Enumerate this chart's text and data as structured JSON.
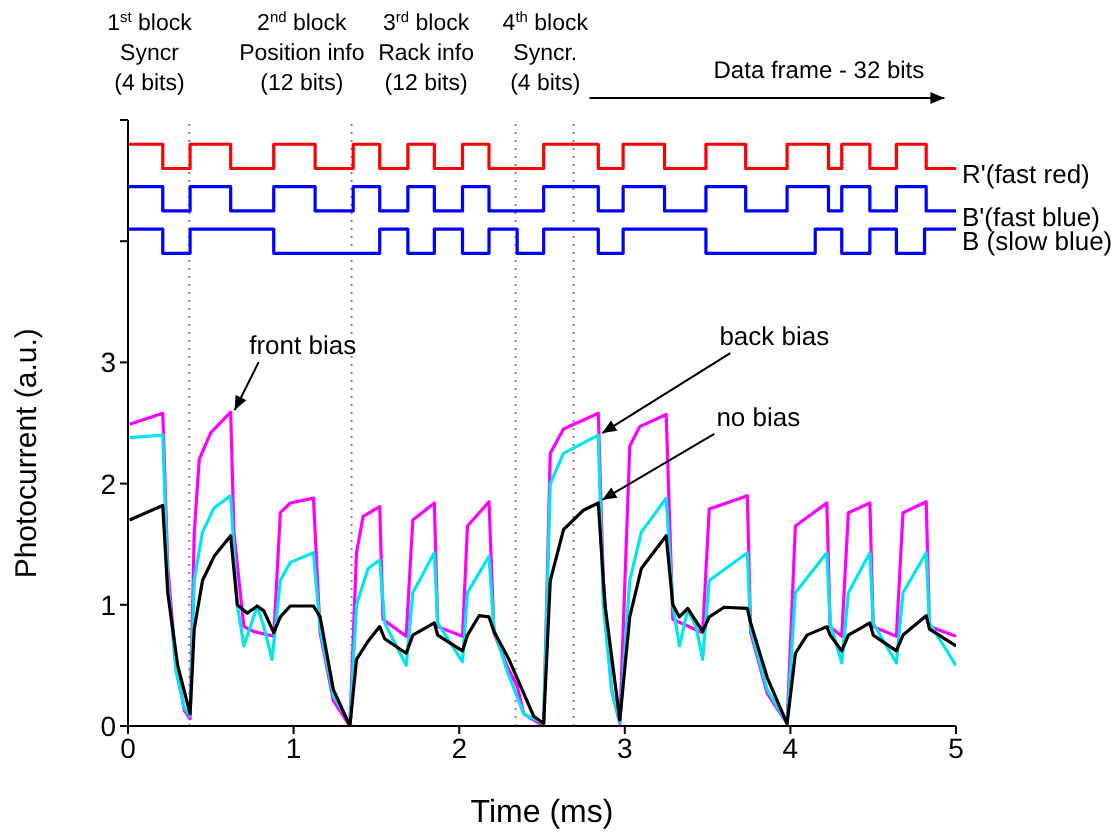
{
  "chart_data": {
    "type": "line",
    "xlabel": "Time (ms)",
    "ylabel": "Photocurrent (a.u.)",
    "xlim": [
      0,
      5
    ],
    "xticks": [
      0,
      1,
      2,
      3,
      4,
      5
    ],
    "ylim": [
      0,
      5
    ],
    "yticks": [
      0,
      1,
      2,
      3,
      {
        "value": 4,
        "label": null
      },
      {
        "value": 5,
        "label": null
      }
    ],
    "series": [
      {
        "name": "R'(fast red)",
        "type": "step",
        "color": "#ff0000",
        "x": [
          0,
          0.21,
          0.375,
          0.62,
          0.88,
          1.13,
          1.36,
          1.52,
          1.69,
          1.85,
          2.02,
          2.18,
          2.51,
          2.84,
          2.99,
          3.24,
          3.49,
          3.73,
          3.98,
          4.23,
          4.31,
          4.48,
          4.64,
          4.82,
          5
        ],
        "values": [
          4.8,
          4.6,
          4.8,
          4.6,
          4.8,
          4.6,
          4.8,
          4.6,
          4.8,
          4.6,
          4.8,
          4.6,
          4.8,
          4.6,
          4.8,
          4.6,
          4.8,
          4.6,
          4.8,
          4.6,
          4.8,
          4.6,
          4.8,
          4.6,
          4.6
        ]
      },
      {
        "name": "B'(fast blue)",
        "type": "step",
        "color": "#0000ff",
        "x": [
          0,
          0.21,
          0.375,
          0.62,
          0.88,
          1.13,
          1.36,
          1.52,
          1.69,
          1.85,
          2.02,
          2.18,
          2.51,
          2.84,
          2.99,
          3.24,
          3.49,
          3.73,
          3.98,
          4.23,
          4.31,
          4.48,
          4.64,
          4.82,
          5
        ],
        "values": [
          4.45,
          4.25,
          4.45,
          4.25,
          4.45,
          4.25,
          4.45,
          4.25,
          4.45,
          4.25,
          4.45,
          4.25,
          4.45,
          4.25,
          4.45,
          4.25,
          4.45,
          4.25,
          4.45,
          4.25,
          4.45,
          4.25,
          4.45,
          4.25,
          4.25
        ]
      },
      {
        "name": "B (slow blue)",
        "type": "step",
        "color": "#0000ff",
        "x": [
          0,
          0.21,
          0.375,
          0.88,
          1.52,
          1.69,
          1.85,
          2.02,
          2.18,
          2.35,
          2.51,
          2.84,
          2.99,
          3.49,
          4.15,
          4.31,
          4.48,
          4.64,
          4.81,
          5
        ],
        "values": [
          4.1,
          3.9,
          4.1,
          3.9,
          4.1,
          3.9,
          4.1,
          3.9,
          4.1,
          3.9,
          4.1,
          3.9,
          4.1,
          3.9,
          4.1,
          3.9,
          4.1,
          3.9,
          4.1,
          4.1
        ]
      },
      {
        "color": "#ff00ff",
        "x": [
          0.01,
          0.21,
          0.24,
          0.29,
          0.34,
          0.375,
          0.4,
          0.43,
          0.5,
          0.62,
          0.64,
          0.7,
          0.76,
          0.88,
          0.92,
          0.98,
          1.12,
          1.16,
          1.24,
          1.34,
          1.38,
          1.42,
          1.52,
          1.54,
          1.68,
          1.72,
          1.85,
          1.87,
          2.02,
          2.05,
          2.18,
          2.21,
          2.29,
          2.35,
          2.39,
          2.51,
          2.55,
          2.63,
          2.84,
          2.87,
          2.92,
          2.97,
          3.03,
          3.09,
          3.25,
          3.29,
          3.47,
          3.51,
          3.74,
          3.76,
          3.86,
          3.98,
          4.03,
          4.22,
          4.24,
          4.31,
          4.35,
          4.48,
          4.5,
          4.64,
          4.68,
          4.82,
          4.84,
          5
        ],
        "values": [
          2.49,
          2.58,
          1.32,
          0.5,
          0.13,
          0.06,
          1.59,
          2.2,
          2.42,
          2.59,
          1.59,
          0.82,
          0.78,
          0.74,
          1.76,
          1.84,
          1.88,
          0.77,
          0.21,
          0,
          1.43,
          1.73,
          1.81,
          0.88,
          0.74,
          1.7,
          1.84,
          0.82,
          0.74,
          1.65,
          1.85,
          0.77,
          0.49,
          0.33,
          0.1,
          0,
          2.25,
          2.45,
          2.58,
          1.2,
          0.3,
          0.02,
          2.31,
          2.47,
          2.57,
          0.88,
          0.77,
          1.79,
          1.9,
          0.77,
          0.27,
          0.02,
          1.65,
          1.84,
          0.82,
          0.74,
          1.76,
          1.84,
          0.82,
          0.74,
          1.76,
          1.85,
          0.82,
          0.74
        ]
      },
      {
        "color": "#00e5ee",
        "x": [
          0.01,
          0.21,
          0.24,
          0.29,
          0.34,
          0.375,
          0.4,
          0.45,
          0.52,
          0.62,
          0.66,
          0.7,
          0.78,
          0.82,
          0.87,
          0.92,
          0.98,
          1.12,
          1.16,
          1.24,
          1.34,
          1.38,
          1.45,
          1.52,
          1.55,
          1.68,
          1.72,
          1.85,
          1.87,
          2.02,
          2.05,
          2.18,
          2.21,
          2.29,
          2.39,
          2.51,
          2.55,
          2.63,
          2.84,
          2.87,
          2.92,
          2.97,
          3.03,
          3.1,
          3.25,
          3.29,
          3.33,
          3.38,
          3.43,
          3.47,
          3.51,
          3.74,
          3.76,
          3.86,
          3.98,
          4.03,
          4.22,
          4.24,
          4.31,
          4.35,
          4.48,
          4.5,
          4.64,
          4.68,
          4.82,
          4.84,
          5
        ],
        "values": [
          2.38,
          2.4,
          1.2,
          0.45,
          0.15,
          0.08,
          1.2,
          1.6,
          1.8,
          1.9,
          1,
          0.66,
          0.99,
          0.82,
          0.55,
          1.2,
          1.35,
          1.43,
          0.8,
          0.25,
          0.02,
          1,
          1.3,
          1.37,
          0.85,
          0.5,
          1.1,
          1.43,
          0.85,
          0.53,
          1.1,
          1.4,
          0.8,
          0.45,
          0.1,
          0.02,
          2,
          2.25,
          2.4,
          1,
          0.3,
          0.03,
          1.2,
          1.6,
          1.88,
          1,
          0.66,
          0.96,
          0.82,
          0.55,
          1.2,
          1.43,
          0.8,
          0.3,
          0.02,
          1.1,
          1.43,
          0.85,
          0.52,
          1.1,
          1.43,
          0.85,
          0.52,
          1.1,
          1.43,
          0.85,
          0.5
        ]
      },
      {
        "color": "#000000",
        "x": [
          0.01,
          0.21,
          0.24,
          0.3,
          0.375,
          0.4,
          0.45,
          0.52,
          0.62,
          0.66,
          0.72,
          0.78,
          0.82,
          0.88,
          0.92,
          0.98,
          1.12,
          1.16,
          1.24,
          1.34,
          1.38,
          1.45,
          1.52,
          1.55,
          1.68,
          1.72,
          1.85,
          1.87,
          2.02,
          2.05,
          2.12,
          2.18,
          2.21,
          2.3,
          2.38,
          2.45,
          2.51,
          2.55,
          2.63,
          2.75,
          2.84,
          2.88,
          2.97,
          3.03,
          3.1,
          3.25,
          3.29,
          3.33,
          3.38,
          3.47,
          3.51,
          3.6,
          3.74,
          3.76,
          3.86,
          3.98,
          4.03,
          4.1,
          4.22,
          4.24,
          4.31,
          4.35,
          4.48,
          4.5,
          4.64,
          4.68,
          4.82,
          4.84,
          5
        ],
        "values": [
          1.7,
          1.82,
          1.1,
          0.5,
          0.1,
          0.8,
          1.2,
          1.4,
          1.57,
          1,
          0.93,
          0.99,
          0.95,
          0.77,
          0.9,
          0.99,
          0.99,
          0.9,
          0.3,
          0,
          0.55,
          0.7,
          0.82,
          0.72,
          0.6,
          0.75,
          0.85,
          0.75,
          0.62,
          0.75,
          0.91,
          0.9,
          0.78,
          0.55,
          0.3,
          0.08,
          0.02,
          1.2,
          1.62,
          1.78,
          1.84,
          1,
          0.05,
          0.9,
          1.3,
          1.57,
          1,
          0.9,
          0.97,
          0.78,
          0.9,
          0.98,
          0.97,
          0.85,
          0.4,
          0.02,
          0.6,
          0.75,
          0.82,
          0.75,
          0.62,
          0.75,
          0.85,
          0.75,
          0.62,
          0.75,
          0.91,
          0.8,
          0.66
        ]
      }
    ],
    "ref_lines": [
      {
        "axis": "x",
        "value": 0.37,
        "color": "#808080",
        "line_style": "dotted"
      },
      {
        "axis": "x",
        "value": 1.35,
        "color": "#808080",
        "line_style": "dotted"
      },
      {
        "axis": "x",
        "value": 2.34,
        "color": "#808080",
        "line_style": "dotted"
      },
      {
        "axis": "x",
        "value": 2.69,
        "color": "#808080",
        "line_style": "dotted"
      }
    ],
    "annotations": [
      "front bias",
      {
        "text": "back bias",
        "x": 2.84,
        "y": 2.4
      },
      {
        "text": "no bias",
        "x": 2.84,
        "y": 1.85
      },
      "1$^{st}$ block\nSyncr\n(4 bits)",
      "2$^{nd}$ block\nPosition info\n(12 bits)",
      "3$^{rd}$ block\nRack info\n(12 bits)",
      "4$^{th}$ block\nSyncr.\n(4 bits)",
      "Data frame - 32 bits"
    ]
  }
}
